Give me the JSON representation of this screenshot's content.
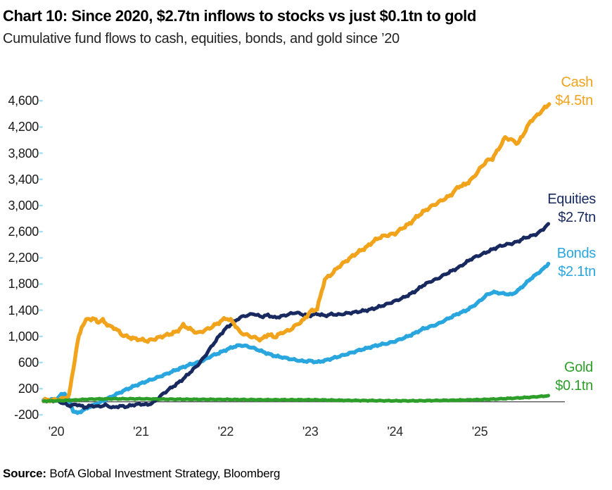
{
  "source": {
    "label": "Source:",
    "text": " BofA Global Investment Strategy, Bloomberg"
  },
  "chart_data": {
    "type": "line",
    "title": "Chart 10: Since 2020, $2.7tn inflows to stocks vs just $0.1tn to gold",
    "subtitle": "Cumulative fund flows to cash, equities, bonds, and gold since ’20",
    "unit": "$bn cumulative fund flows",
    "grid": false,
    "legend_position": "line-end annotations, right side",
    "x_range": [
      2019.85,
      2026.0
    ],
    "y_range": [
      -200,
      4600
    ],
    "x_ticks": {
      "values": [
        2020,
        2021,
        2022,
        2023,
        2024,
        2025
      ],
      "labels": [
        "'20",
        "'21",
        "'22",
        "'23",
        "'24",
        "'25"
      ]
    },
    "y_ticks": {
      "values": [
        4600,
        4200,
        3800,
        3400,
        3000,
        2600,
        2200,
        1800,
        1400,
        1000,
        600,
        200,
        -200
      ],
      "labels": [
        "4,600",
        "4,200",
        "3,800",
        "3,400",
        "3,000",
        "2,600",
        "2,200",
        "1,800",
        "1,400",
        "1,000",
        "600",
        "200",
        "-200"
      ]
    },
    "zero_line": true,
    "axis_tick_color": "#a5dff4",
    "zero_line_color": "#58595b",
    "series": [
      {
        "name": "Bonds",
        "label_line1": "Bonds",
        "label_line2": "$2.1tn",
        "color": "#2AA6DF",
        "points": [
          [
            2019.85,
            30
          ],
          [
            2020.0,
            40
          ],
          [
            2020.06,
            110
          ],
          [
            2020.1,
            130
          ],
          [
            2020.15,
            20
          ],
          [
            2020.2,
            -140
          ],
          [
            2020.25,
            -175
          ],
          [
            2020.33,
            -120
          ],
          [
            2020.42,
            -60
          ],
          [
            2020.5,
            -20
          ],
          [
            2020.58,
            30
          ],
          [
            2020.67,
            90
          ],
          [
            2020.75,
            140
          ],
          [
            2020.83,
            190
          ],
          [
            2020.92,
            240
          ],
          [
            2021.0,
            280
          ],
          [
            2021.08,
            320
          ],
          [
            2021.17,
            360
          ],
          [
            2021.25,
            400
          ],
          [
            2021.33,
            440
          ],
          [
            2021.42,
            490
          ],
          [
            2021.5,
            530
          ],
          [
            2021.58,
            570
          ],
          [
            2021.67,
            600
          ],
          [
            2021.75,
            640
          ],
          [
            2021.83,
            700
          ],
          [
            2021.92,
            745
          ],
          [
            2022.0,
            790
          ],
          [
            2022.08,
            835
          ],
          [
            2022.17,
            865
          ],
          [
            2022.25,
            850
          ],
          [
            2022.33,
            820
          ],
          [
            2022.42,
            775
          ],
          [
            2022.5,
            735
          ],
          [
            2022.58,
            700
          ],
          [
            2022.67,
            680
          ],
          [
            2022.75,
            658
          ],
          [
            2022.83,
            638
          ],
          [
            2022.92,
            618
          ],
          [
            2023.0,
            625
          ],
          [
            2023.08,
            605
          ],
          [
            2023.17,
            630
          ],
          [
            2023.25,
            660
          ],
          [
            2023.33,
            690
          ],
          [
            2023.42,
            725
          ],
          [
            2023.5,
            755
          ],
          [
            2023.58,
            790
          ],
          [
            2023.67,
            820
          ],
          [
            2023.75,
            850
          ],
          [
            2023.83,
            875
          ],
          [
            2023.92,
            895
          ],
          [
            2024.0,
            925
          ],
          [
            2024.08,
            965
          ],
          [
            2024.17,
            1010
          ],
          [
            2024.25,
            1060
          ],
          [
            2024.33,
            1115
          ],
          [
            2024.42,
            1150
          ],
          [
            2024.5,
            1185
          ],
          [
            2024.58,
            1240
          ],
          [
            2024.67,
            1300
          ],
          [
            2024.75,
            1350
          ],
          [
            2024.83,
            1390
          ],
          [
            2024.92,
            1460
          ],
          [
            2025.0,
            1540
          ],
          [
            2025.08,
            1630
          ],
          [
            2025.15,
            1675
          ],
          [
            2025.22,
            1665
          ],
          [
            2025.3,
            1650
          ],
          [
            2025.38,
            1640
          ],
          [
            2025.45,
            1700
          ],
          [
            2025.52,
            1780
          ],
          [
            2025.6,
            1880
          ],
          [
            2025.68,
            1960
          ],
          [
            2025.75,
            2030
          ],
          [
            2025.81,
            2110
          ]
        ]
      },
      {
        "name": "Equities",
        "label_line1": "Equities",
        "label_line2": "$2.7tn",
        "color": "#17295E",
        "points": [
          [
            2019.85,
            15
          ],
          [
            2020.0,
            20
          ],
          [
            2020.08,
            -20
          ],
          [
            2020.15,
            -60
          ],
          [
            2020.25,
            -40
          ],
          [
            2020.33,
            -85
          ],
          [
            2020.42,
            -60
          ],
          [
            2020.5,
            -75
          ],
          [
            2020.58,
            -50
          ],
          [
            2020.67,
            -90
          ],
          [
            2020.75,
            -65
          ],
          [
            2020.83,
            -75
          ],
          [
            2020.92,
            -45
          ],
          [
            2021.0,
            -35
          ],
          [
            2021.08,
            -45
          ],
          [
            2021.15,
            -10
          ],
          [
            2021.25,
            110
          ],
          [
            2021.33,
            190
          ],
          [
            2021.42,
            270
          ],
          [
            2021.5,
            350
          ],
          [
            2021.58,
            450
          ],
          [
            2021.67,
            560
          ],
          [
            2021.75,
            690
          ],
          [
            2021.83,
            840
          ],
          [
            2021.92,
            1000
          ],
          [
            2022.0,
            1120
          ],
          [
            2022.08,
            1200
          ],
          [
            2022.17,
            1290
          ],
          [
            2022.25,
            1320
          ],
          [
            2022.33,
            1345
          ],
          [
            2022.42,
            1300
          ],
          [
            2022.5,
            1325
          ],
          [
            2022.58,
            1285
          ],
          [
            2022.67,
            1310
          ],
          [
            2022.75,
            1340
          ],
          [
            2022.83,
            1365
          ],
          [
            2022.92,
            1330
          ],
          [
            2023.0,
            1320
          ],
          [
            2023.08,
            1345
          ],
          [
            2023.17,
            1315
          ],
          [
            2023.25,
            1340
          ],
          [
            2023.33,
            1330
          ],
          [
            2023.42,
            1350
          ],
          [
            2023.5,
            1365
          ],
          [
            2023.58,
            1380
          ],
          [
            2023.67,
            1400
          ],
          [
            2023.75,
            1425
          ],
          [
            2023.83,
            1460
          ],
          [
            2023.92,
            1500
          ],
          [
            2024.0,
            1540
          ],
          [
            2024.08,
            1580
          ],
          [
            2024.17,
            1640
          ],
          [
            2024.25,
            1700
          ],
          [
            2024.33,
            1780
          ],
          [
            2024.42,
            1840
          ],
          [
            2024.5,
            1880
          ],
          [
            2024.58,
            1940
          ],
          [
            2024.67,
            2000
          ],
          [
            2024.76,
            2060
          ],
          [
            2024.85,
            2140
          ],
          [
            2024.92,
            2200
          ],
          [
            2025.0,
            2240
          ],
          [
            2025.07,
            2280
          ],
          [
            2025.15,
            2330
          ],
          [
            2025.22,
            2370
          ],
          [
            2025.3,
            2400
          ],
          [
            2025.38,
            2420
          ],
          [
            2025.45,
            2450
          ],
          [
            2025.52,
            2500
          ],
          [
            2025.6,
            2530
          ],
          [
            2025.68,
            2570
          ],
          [
            2025.75,
            2640
          ],
          [
            2025.81,
            2720
          ]
        ]
      },
      {
        "name": "Cash",
        "label_line1": "Cash",
        "label_line2": "$4.5tn",
        "color": "#F1A41B",
        "points": [
          [
            2019.85,
            25
          ],
          [
            2020.0,
            30
          ],
          [
            2020.08,
            50
          ],
          [
            2020.15,
            90
          ],
          [
            2020.2,
            500
          ],
          [
            2020.25,
            900
          ],
          [
            2020.3,
            1150
          ],
          [
            2020.37,
            1270
          ],
          [
            2020.45,
            1260
          ],
          [
            2020.5,
            1220
          ],
          [
            2020.55,
            1245
          ],
          [
            2020.62,
            1160
          ],
          [
            2020.7,
            1120
          ],
          [
            2020.78,
            1020
          ],
          [
            2020.85,
            990
          ],
          [
            2020.92,
            965
          ],
          [
            2021.0,
            950
          ],
          [
            2021.08,
            930
          ],
          [
            2021.17,
            965
          ],
          [
            2021.25,
            1000
          ],
          [
            2021.33,
            1030
          ],
          [
            2021.42,
            1070
          ],
          [
            2021.5,
            1170
          ],
          [
            2021.58,
            1110
          ],
          [
            2021.67,
            1050
          ],
          [
            2021.75,
            1090
          ],
          [
            2021.83,
            1140
          ],
          [
            2021.92,
            1210
          ],
          [
            2022.0,
            1280
          ],
          [
            2022.08,
            1230
          ],
          [
            2022.17,
            1060
          ],
          [
            2022.25,
            1020
          ],
          [
            2022.33,
            985
          ],
          [
            2022.42,
            950
          ],
          [
            2022.5,
            1030
          ],
          [
            2022.58,
            990
          ],
          [
            2022.67,
            1060
          ],
          [
            2022.75,
            1090
          ],
          [
            2022.83,
            1170
          ],
          [
            2022.92,
            1250
          ],
          [
            2023.0,
            1380
          ],
          [
            2023.08,
            1420
          ],
          [
            2023.17,
            1870
          ],
          [
            2023.25,
            1950
          ],
          [
            2023.33,
            2060
          ],
          [
            2023.42,
            2150
          ],
          [
            2023.5,
            2230
          ],
          [
            2023.58,
            2300
          ],
          [
            2023.67,
            2370
          ],
          [
            2023.75,
            2460
          ],
          [
            2023.83,
            2520
          ],
          [
            2023.92,
            2550
          ],
          [
            2024.0,
            2570
          ],
          [
            2024.08,
            2650
          ],
          [
            2024.17,
            2720
          ],
          [
            2024.25,
            2820
          ],
          [
            2024.33,
            2900
          ],
          [
            2024.42,
            2980
          ],
          [
            2024.5,
            3040
          ],
          [
            2024.58,
            3100
          ],
          [
            2024.65,
            3150
          ],
          [
            2024.75,
            3290
          ],
          [
            2024.83,
            3320
          ],
          [
            2024.92,
            3420
          ],
          [
            2025.0,
            3560
          ],
          [
            2025.08,
            3680
          ],
          [
            2025.15,
            3720
          ],
          [
            2025.22,
            3860
          ],
          [
            2025.3,
            4040
          ],
          [
            2025.38,
            4000
          ],
          [
            2025.45,
            3950
          ],
          [
            2025.52,
            4100
          ],
          [
            2025.6,
            4290
          ],
          [
            2025.68,
            4380
          ],
          [
            2025.75,
            4470
          ],
          [
            2025.82,
            4550
          ]
        ]
      },
      {
        "name": "Gold",
        "label_line1": "Gold",
        "label_line2": "$0.1tn",
        "color": "#2E9E2A",
        "points": [
          [
            2019.85,
            10
          ],
          [
            2020.0,
            15
          ],
          [
            2020.2,
            25
          ],
          [
            2020.4,
            40
          ],
          [
            2020.6,
            45
          ],
          [
            2020.8,
            45
          ],
          [
            2021.0,
            45
          ],
          [
            2021.25,
            40
          ],
          [
            2021.5,
            38
          ],
          [
            2021.75,
            35
          ],
          [
            2022.0,
            35
          ],
          [
            2022.25,
            32
          ],
          [
            2022.5,
            30
          ],
          [
            2022.75,
            30
          ],
          [
            2023.0,
            30
          ],
          [
            2023.25,
            25
          ],
          [
            2023.5,
            20
          ],
          [
            2023.75,
            18
          ],
          [
            2024.0,
            15
          ],
          [
            2024.25,
            15
          ],
          [
            2024.5,
            20
          ],
          [
            2024.75,
            25
          ],
          [
            2025.0,
            32
          ],
          [
            2025.2,
            42
          ],
          [
            2025.4,
            55
          ],
          [
            2025.6,
            70
          ],
          [
            2025.75,
            85
          ],
          [
            2025.81,
            95
          ]
        ]
      }
    ]
  }
}
